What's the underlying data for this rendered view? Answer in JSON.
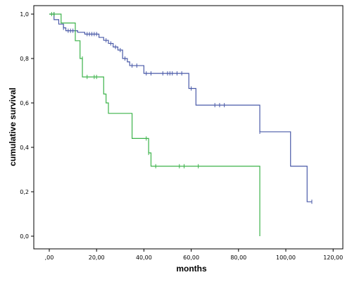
{
  "chart_data": {
    "type": "line",
    "title": "",
    "xlabel": "months",
    "ylabel": "cumulative survival",
    "xlim": [
      0,
      120
    ],
    "ylim": [
      0,
      1
    ],
    "x_ticks": [
      {
        "value": 0,
        "label": ",00"
      },
      {
        "value": 20,
        "label": "20,00"
      },
      {
        "value": 40,
        "label": "40,00"
      },
      {
        "value": 60,
        "label": "60,00"
      },
      {
        "value": 80,
        "label": "80,00"
      },
      {
        "value": 100,
        "label": "100,00"
      },
      {
        "value": 120,
        "label": "120,00"
      }
    ],
    "y_ticks": [
      {
        "value": 0,
        "label": "0,0"
      },
      {
        "value": 0.2,
        "label": "0,2"
      },
      {
        "value": 0.4,
        "label": "0,4"
      },
      {
        "value": 0.6,
        "label": "0,6"
      },
      {
        "value": 0.8,
        "label": "0,8"
      },
      {
        "value": 1.0,
        "label": "1,0"
      }
    ],
    "grid": false,
    "legend": "none",
    "series": [
      {
        "color": "#4a5aa8",
        "steps": [
          [
            0,
            1.0
          ],
          [
            2,
            0.975
          ],
          [
            4,
            0.955
          ],
          [
            6,
            0.938
          ],
          [
            7,
            0.925
          ],
          [
            12,
            0.918
          ],
          [
            15,
            0.91
          ],
          [
            21,
            0.895
          ],
          [
            23,
            0.882
          ],
          [
            25,
            0.868
          ],
          [
            27,
            0.852
          ],
          [
            29,
            0.838
          ],
          [
            31,
            0.8
          ],
          [
            33,
            0.785
          ],
          [
            34,
            0.768
          ],
          [
            40,
            0.733
          ],
          [
            59,
            0.665
          ],
          [
            62,
            0.59
          ],
          [
            89,
            0.47
          ],
          [
            102,
            0.315
          ],
          [
            109,
            0.155
          ]
        ],
        "end_x": 111,
        "censored": [
          [
            2,
            1.0
          ],
          [
            6,
            0.938
          ],
          [
            8,
            0.925
          ],
          [
            9,
            0.925
          ],
          [
            10,
            0.925
          ],
          [
            11,
            0.925
          ],
          [
            16,
            0.91
          ],
          [
            17,
            0.91
          ],
          [
            18,
            0.91
          ],
          [
            19,
            0.91
          ],
          [
            20,
            0.91
          ],
          [
            24,
            0.882
          ],
          [
            26,
            0.868
          ],
          [
            28,
            0.852
          ],
          [
            30,
            0.838
          ],
          [
            32,
            0.8
          ],
          [
            35,
            0.768
          ],
          [
            37,
            0.768
          ],
          [
            41,
            0.733
          ],
          [
            43,
            0.733
          ],
          [
            48,
            0.733
          ],
          [
            50,
            0.733
          ],
          [
            51,
            0.733
          ],
          [
            52,
            0.733
          ],
          [
            54,
            0.733
          ],
          [
            56,
            0.733
          ],
          [
            60,
            0.665
          ],
          [
            70,
            0.59
          ],
          [
            72,
            0.59
          ],
          [
            74,
            0.59
          ],
          [
            89,
            0.47
          ],
          [
            111,
            0.155
          ]
        ]
      },
      {
        "color": "#3cb34a",
        "steps": [
          [
            0,
            1.0
          ],
          [
            5,
            0.96
          ],
          [
            11,
            0.88
          ],
          [
            13,
            0.8
          ],
          [
            14,
            0.717
          ],
          [
            23,
            0.64
          ],
          [
            24,
            0.6
          ],
          [
            25,
            0.553
          ],
          [
            35,
            0.44
          ],
          [
            42,
            0.375
          ],
          [
            43,
            0.315
          ]
        ],
        "end_x": 89,
        "drop_to": 0.0,
        "censored": [
          [
            1,
            1.0
          ],
          [
            2,
            1.0
          ],
          [
            14,
            0.8
          ],
          [
            16,
            0.717
          ],
          [
            19,
            0.717
          ],
          [
            20,
            0.717
          ],
          [
            41,
            0.44
          ],
          [
            42,
            0.375
          ],
          [
            45,
            0.315
          ],
          [
            55,
            0.315
          ],
          [
            57,
            0.315
          ],
          [
            63,
            0.315
          ]
        ]
      }
    ]
  }
}
